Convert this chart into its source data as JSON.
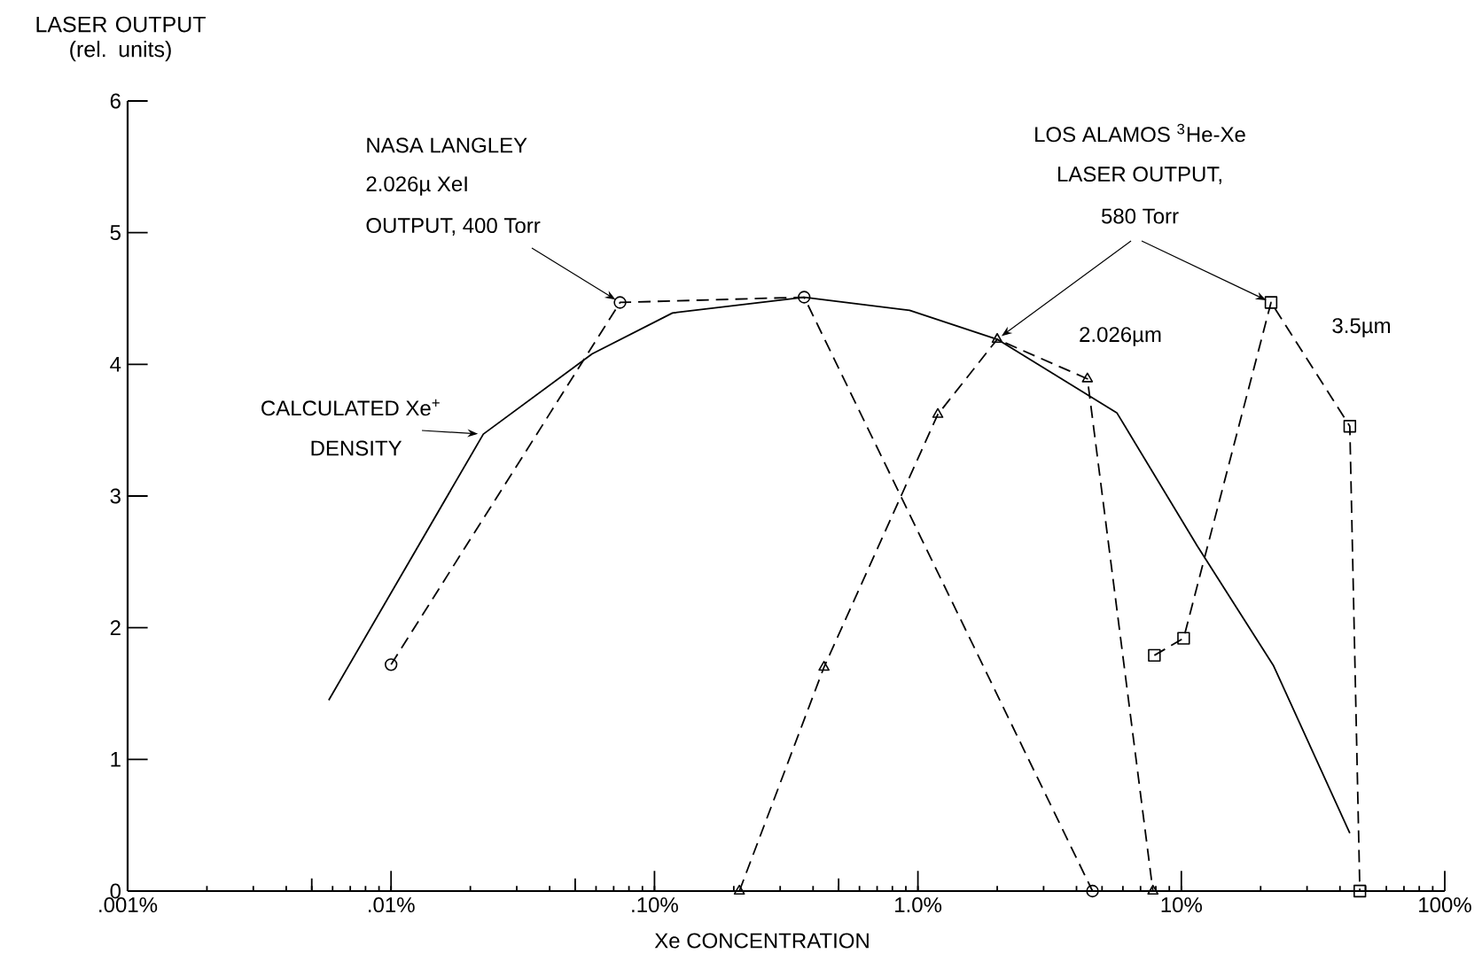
{
  "chart_data": {
    "type": "line",
    "xlabel": "Xe CONCENTRATION",
    "ylabel": "LASER OUTPUT (rel. units)",
    "log": "x",
    "xlim": [
      0.001,
      100
    ],
    "ylim": [
      0,
      6
    ],
    "xticks": [
      {
        "value": 0.001,
        "label": ".001%"
      },
      {
        "value": 0.005,
        "label": null
      },
      {
        "value": 0.01,
        "label": ".01%"
      },
      {
        "value": 0.05,
        "label": null
      },
      {
        "value": 0.1,
        "label": ".10%"
      },
      {
        "value": 0.5,
        "label": null
      },
      {
        "value": 1,
        "label": "1.0%"
      },
      {
        "value": 10,
        "label": "10%"
      },
      {
        "value": 100,
        "label": "100%"
      }
    ],
    "yticks": [
      0,
      1,
      2,
      3,
      4,
      5,
      6
    ],
    "grid": false,
    "series": [
      {
        "x": [
          0.0058,
          0.0224,
          0.058,
          0.117,
          0.37,
          0.93,
          2.0,
          5.7,
          11.5,
          22.4,
          43.6
        ],
        "values": [
          1.45,
          3.47,
          4.08,
          4.39,
          4.51,
          4.41,
          4.19,
          3.63,
          2.62,
          1.71,
          0.44
        ],
        "color": "#000000",
        "marker": "none",
        "line_style": "solid"
      },
      {
        "x": [
          0.01,
          0.074,
          0.37,
          4.6
        ],
        "values": [
          1.72,
          4.47,
          4.51,
          0
        ],
        "color": "#000000",
        "marker": "circle",
        "line_style": "dashed"
      },
      {
        "name": "2.026µm",
        "x": [
          0.21,
          0.44,
          1.19,
          2.0,
          4.4,
          7.8
        ],
        "values": [
          0,
          1.7,
          3.62,
          4.19,
          3.89,
          0
        ],
        "color": "#000000",
        "marker": "triangle",
        "line_style": "dashed"
      },
      {
        "name": "3.5µm",
        "x": [
          7.9,
          10.2,
          21.9,
          43.6,
          47.6
        ],
        "values": [
          1.79,
          1.92,
          4.47,
          3.53,
          0
        ],
        "color": "#000000",
        "marker": "square",
        "line_style": "dashed"
      }
    ],
    "annotations": [
      "NASA LANGLEY",
      "2.026µ XeI",
      {
        "text": "OUTPUT, 400 Torr",
        "x": 0.074,
        "y": 4.47
      },
      {
        "text": "CALCULATED Xe$^{+}$",
        "x": 0.0224,
        "y": 3.47
      },
      "DENSITY",
      "LOS ALAMOS $^{3}$He-Xe",
      "LASER OUTPUT,",
      {
        "text": "580 Torr",
        "x": 21.9,
        "y": 4.47
      }
    ]
  }
}
